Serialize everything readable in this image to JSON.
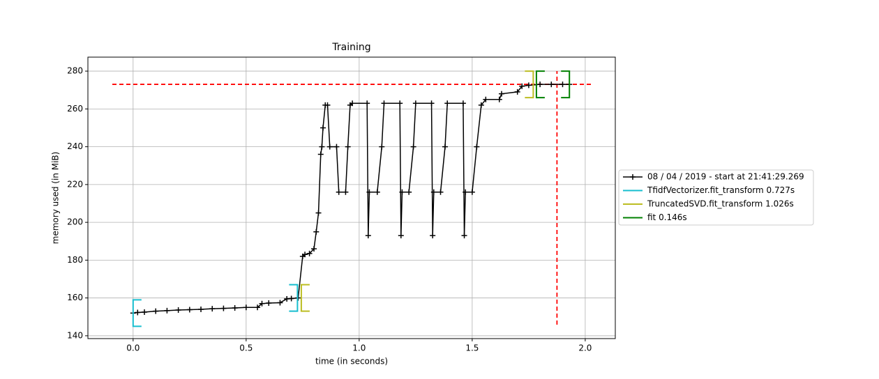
{
  "chart_data": {
    "type": "line",
    "title": "Training",
    "xlabel": "time (in seconds)",
    "ylabel": "memory used (in MiB)",
    "xlim": [
      -0.2,
      2.133
    ],
    "ylim": [
      138.5,
      287.4
    ],
    "xticks": [
      {
        "value": 0,
        "label": "0.0"
      },
      0.5,
      {
        "value": 1,
        "label": "1.0"
      },
      1.5,
      {
        "value": 2,
        "label": "2.0"
      }
    ],
    "yticks": [
      140,
      160,
      180,
      200,
      220,
      240,
      260,
      280
    ],
    "grid": true,
    "legend": "right",
    "series": [
      {
        "name": "08 / 04 / 2019 - start at 21:41:29.269",
        "color": "#000000",
        "x": [
          0,
          0.02,
          0.05,
          0.1,
          0.15,
          0.2,
          0.25,
          0.3,
          0.35,
          0.4,
          0.45,
          0.5,
          0.55,
          0.57,
          0.6,
          0.65,
          0.68,
          0.7,
          0.73,
          0.75,
          0.76,
          0.78,
          0.8,
          0.81,
          0.82,
          0.83,
          0.835,
          0.84,
          0.85,
          0.86,
          0.87,
          0.9,
          0.91,
          0.94,
          0.95,
          0.96,
          0.97,
          1.035,
          1.04,
          1.045,
          1.08,
          1.1,
          1.11,
          1.18,
          1.185,
          1.19,
          1.22,
          1.24,
          1.25,
          1.32,
          1.325,
          1.33,
          1.36,
          1.38,
          1.39,
          1.46,
          1.465,
          1.47,
          1.5,
          1.52,
          1.54,
          1.56,
          1.62,
          1.63,
          1.7,
          1.72,
          1.75,
          1.8,
          1.85,
          1.9,
          1.93
        ],
        "values": [
          152,
          152.3,
          152.5,
          153,
          153.3,
          153.6,
          153.8,
          154,
          154.3,
          154.5,
          154.7,
          155,
          155,
          157,
          157.3,
          157.5,
          159.5,
          159.7,
          160,
          182,
          183,
          183.5,
          186,
          195,
          205,
          236,
          240,
          250,
          262,
          262,
          240,
          240,
          216,
          216,
          240,
          262,
          263,
          263,
          193,
          216,
          216,
          240,
          263,
          263,
          193,
          216,
          216,
          240,
          263,
          263,
          193,
          216,
          216,
          240,
          263,
          263,
          193,
          216,
          216,
          240,
          262,
          265,
          265,
          268,
          269,
          272,
          272.5,
          273,
          273,
          273,
          273
        ]
      }
    ],
    "functions": [
      {
        "name": "TfidfVectorizer.fit_transform 0.727s",
        "color": "#17becf",
        "start": 0,
        "end": 0.727,
        "mem_start": 152,
        "mem_end": 160
      },
      {
        "name": "TruncatedSVD.fit_transform 1.026s",
        "color": "#bcbd22",
        "start": 0.744,
        "end": 1.77,
        "mem_start": 160,
        "mem_end": 273
      },
      {
        "name": "fit 0.146s",
        "color": "#008000",
        "start": 1.784,
        "end": 1.93,
        "mem_start": 273,
        "mem_end": 273
      }
    ],
    "peak_memory": 273,
    "peak_time": 1.875,
    "peak_color": "#ff0000"
  }
}
